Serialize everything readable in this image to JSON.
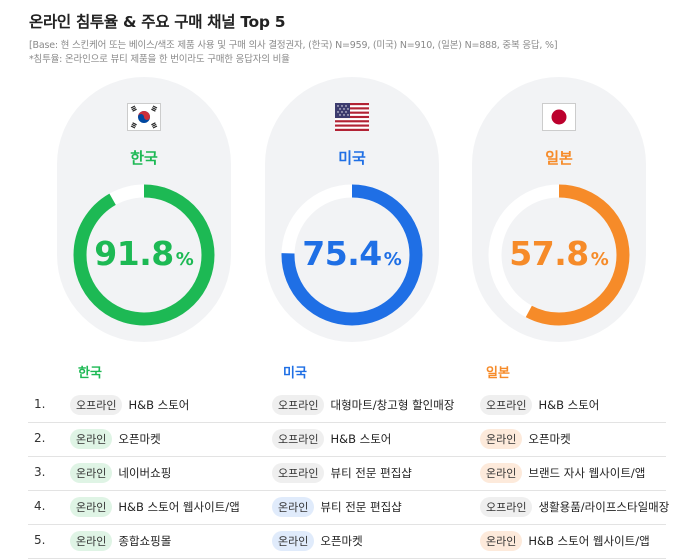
{
  "title": "온라인 침투율 & 주요 구매 채널 Top 5",
  "notes": [
    "[Base: 현 스킨케어 또는 베이스/색조 제품 사용 및 구매 의사 결정권자, (한국) N=959, (미국) N=910, (일본) N=888, 중복 응답, %]",
    "*침투율: 온라인으로 뷰티 제품을 한 번이라도 구매한 응답자의 비율"
  ],
  "colors": {
    "korea": "#1db954",
    "usa": "#1f6fe5",
    "japan": "#f68b29",
    "track": "#ffffff",
    "card": "#f2f3f5"
  },
  "chart_data": {
    "type": "donut",
    "unit": "%",
    "series": [
      {
        "name": "한국",
        "value": 91.8,
        "label": "91.8",
        "flag": "korea-flag-icon"
      },
      {
        "name": "미국",
        "value": 75.4,
        "label": "75.4",
        "flag": "usa-flag-icon"
      },
      {
        "name": "일본",
        "value": 57.8,
        "label": "57.8",
        "flag": "japan-flag-icon"
      }
    ]
  },
  "table": {
    "headers": [
      "한국",
      "미국",
      "일본"
    ],
    "rows": [
      {
        "rank": "1.",
        "cells": [
          {
            "badge": "오프라인",
            "type": "mix",
            "text": "H&B 스토어"
          },
          {
            "badge": "오프라인",
            "type": "mix",
            "text": "대형마트/창고형 할인매장"
          },
          {
            "badge": "오프라인",
            "type": "mix",
            "text": "H&B 스토어"
          }
        ]
      },
      {
        "rank": "2.",
        "cells": [
          {
            "badge": "온라인",
            "type": "kr",
            "text": "오픈마켓"
          },
          {
            "badge": "오프라인",
            "type": "mix",
            "text": "H&B 스토어"
          },
          {
            "badge": "온라인",
            "type": "jp",
            "text": "오픈마켓"
          }
        ]
      },
      {
        "rank": "3.",
        "cells": [
          {
            "badge": "온라인",
            "type": "kr",
            "text": "네이버쇼핑"
          },
          {
            "badge": "오프라인",
            "type": "mix",
            "text": "뷰티 전문 편집샵"
          },
          {
            "badge": "온라인",
            "type": "jp",
            "text": "브랜드 자사 웹사이트/앱"
          }
        ]
      },
      {
        "rank": "4.",
        "cells": [
          {
            "badge": "온라인",
            "type": "kr",
            "text": "H&B 스토어 웹사이트/앱"
          },
          {
            "badge": "온라인",
            "type": "us",
            "text": "뷰티 전문 편집샵"
          },
          {
            "badge": "오프라인",
            "type": "mix",
            "text": "생활용품/라이프스타일매장"
          }
        ]
      },
      {
        "rank": "5.",
        "cells": [
          {
            "badge": "온라인",
            "type": "kr",
            "text": "종합쇼핑몰"
          },
          {
            "badge": "온라인",
            "type": "us",
            "text": "오픈마켓"
          },
          {
            "badge": "온라인",
            "type": "jp",
            "text": "H&B 스토어 웹사이트/앱"
          }
        ]
      }
    ]
  }
}
